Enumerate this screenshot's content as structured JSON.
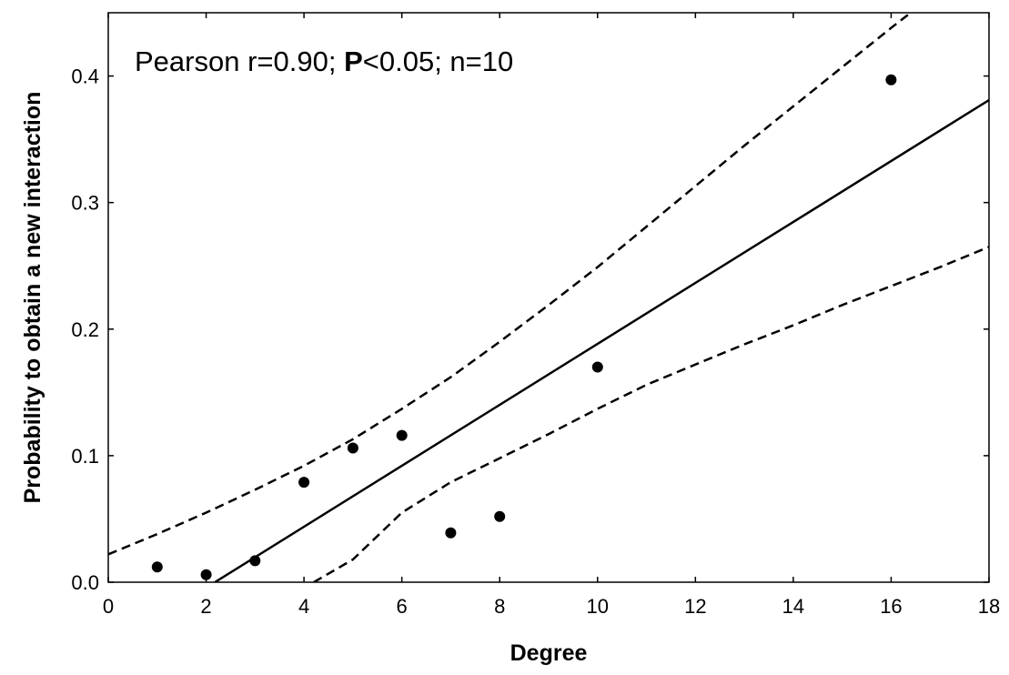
{
  "chart_data": {
    "type": "scatter",
    "xlabel": "Degree",
    "ylabel": "Probability to obtain a new interaction",
    "xlim": [
      0,
      18
    ],
    "ylim": [
      0,
      0.45
    ],
    "x_ticks": [
      "0",
      "2",
      "4",
      "6",
      "8",
      "10",
      "12",
      "14",
      "16",
      "18"
    ],
    "y_ticks": [
      "0.0",
      "0.1",
      "0.2",
      "0.3",
      "0.4"
    ],
    "annotation": {
      "prefix": "Pearson r=0.90; ",
      "bold": "P",
      "suffix": "<0.05; n=10"
    },
    "points": {
      "x": [
        1,
        2,
        3,
        4,
        5,
        6,
        7,
        8,
        10,
        16
      ],
      "y": [
        0.012,
        0.006,
        0.017,
        0.079,
        0.106,
        0.116,
        0.039,
        0.052,
        0.17,
        0.397
      ]
    },
    "fit_line": {
      "x": [
        2.18,
        18
      ],
      "y": [
        0,
        0.381
      ]
    },
    "ci_upper": {
      "x": [
        0,
        1,
        2,
        3,
        4,
        5,
        6,
        7,
        8,
        9,
        10,
        11,
        12,
        13,
        14,
        15,
        16,
        17,
        18
      ],
      "y": [
        0.022,
        0.038,
        0.055,
        0.073,
        0.092,
        0.113,
        0.137,
        0.162,
        0.19,
        0.219,
        0.249,
        0.281,
        0.313,
        0.345,
        0.376,
        0.407,
        0.438,
        0.468,
        0.499
      ]
    },
    "ci_lower": {
      "x": [
        4.2,
        5,
        6,
        7,
        8,
        9,
        10,
        11,
        12,
        13,
        14,
        15,
        16,
        17,
        18
      ],
      "y": [
        0.0,
        0.018,
        0.055,
        0.079,
        0.098,
        0.117,
        0.137,
        0.156,
        0.172,
        0.188,
        0.203,
        0.219,
        0.234,
        0.249,
        0.265
      ]
    },
    "colors": {
      "points": "#000000",
      "lines": "#000000"
    },
    "grid": false
  }
}
